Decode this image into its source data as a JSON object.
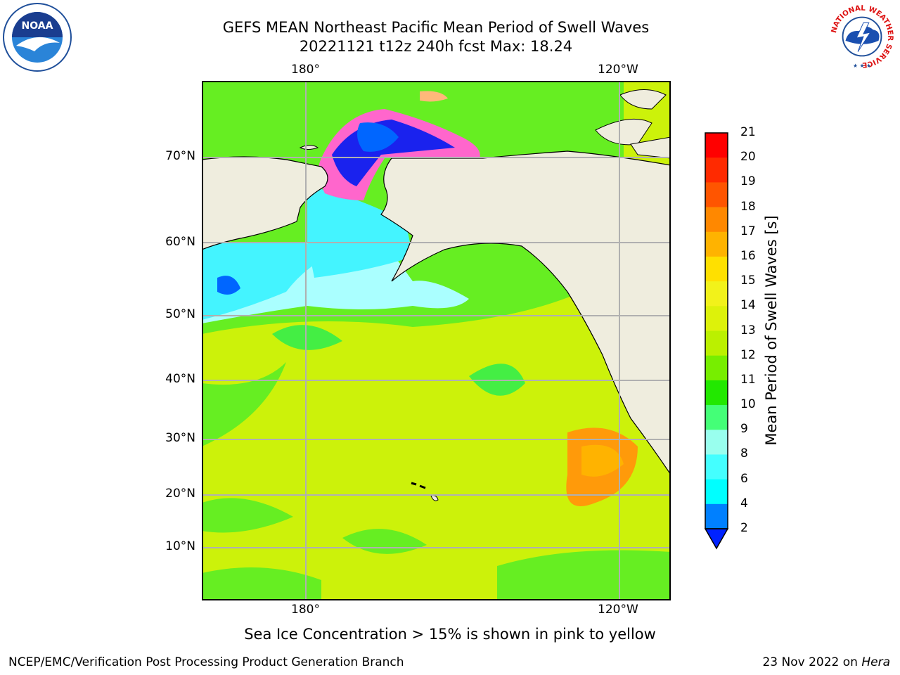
{
  "title": {
    "line1": "GEFS MEAN Northeast Pacific Mean Period of Swell Waves",
    "line2": "20221121 t12z 240h fcst   Max: 18.24"
  },
  "logos": {
    "noaa_text": "NOAA",
    "nws_ring": "NATIONAL WEATHER SERVICE"
  },
  "map": {
    "lon_ticks": [
      "180°",
      "120°W"
    ],
    "lat_ticks": [
      "70°N",
      "60°N",
      "50°N",
      "40°N",
      "30°N",
      "20°N",
      "10°N"
    ],
    "colors": {
      "land": "#efedde",
      "ocean_green": "#66ee22",
      "ocean_yellow": "#ccf20a",
      "ocean_cyan": "#44f4ff",
      "ocean_lightcyan": "#aaffff",
      "ocean_orange": "#ff9a0a",
      "sea_ice_blue": "#0066ff",
      "sea_ice_darkblue": "#1a22ee",
      "sea_ice_pink": "#ff66cc",
      "gridline": "#b0b0b0"
    }
  },
  "colorbar": {
    "label": "Mean Period of Swell Waves [s]",
    "ticks": [
      "21",
      "20",
      "19",
      "18",
      "17",
      "16",
      "15",
      "14",
      "13",
      "12",
      "11",
      "10",
      "9",
      "8",
      "6",
      "4",
      "2"
    ],
    "colors": [
      "#ff0000",
      "#ff2a00",
      "#ff5500",
      "#ff8800",
      "#ffb300",
      "#ffe000",
      "#f2f21a",
      "#ddf20a",
      "#bbf000",
      "#77ee00",
      "#22e800",
      "#44ff77",
      "#99ffee",
      "#44ffff",
      "#00ffff",
      "#0080ff"
    ],
    "extend_color": "#0022ff"
  },
  "note": "Sea Ice Concentration > 15% is shown in pink to yellow",
  "footer": {
    "left": "NCEP/EMC/Verification Post Processing Product Generation Branch",
    "right_date": "23 Nov 2022 on",
    "right_host": "Hera"
  }
}
